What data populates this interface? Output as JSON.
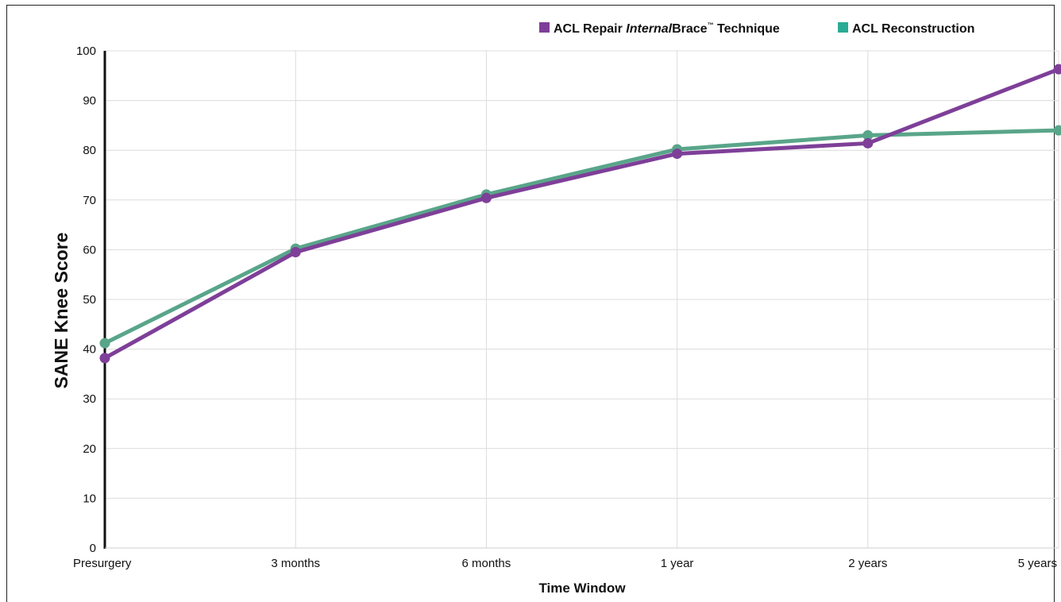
{
  "chart_data": {
    "type": "line",
    "xlabel": "Time Window",
    "ylabel": "SANE Knee Score",
    "ylim": [
      0,
      100
    ],
    "yticks": [
      0,
      10,
      20,
      30,
      40,
      50,
      60,
      70,
      80,
      90,
      100
    ],
    "categories": [
      "Presurgery",
      "3 months",
      "6 months",
      "1 year",
      "2 years",
      "5 years"
    ],
    "grid": true,
    "legend_position": "top-right",
    "series": [
      {
        "name_parts": [
          "ACL Repair ",
          "Internal",
          "Brace",
          "™",
          " Technique"
        ],
        "color": "#7e3f98",
        "values": [
          38.2,
          59.5,
          70.4,
          79.3,
          81.4,
          96.3
        ]
      },
      {
        "name": "ACL Reconstruction",
        "color": "#59a58a",
        "legend_color": "#2bab95",
        "values": [
          41.2,
          60.2,
          71.1,
          80.2,
          83.0,
          84.0
        ]
      }
    ]
  }
}
